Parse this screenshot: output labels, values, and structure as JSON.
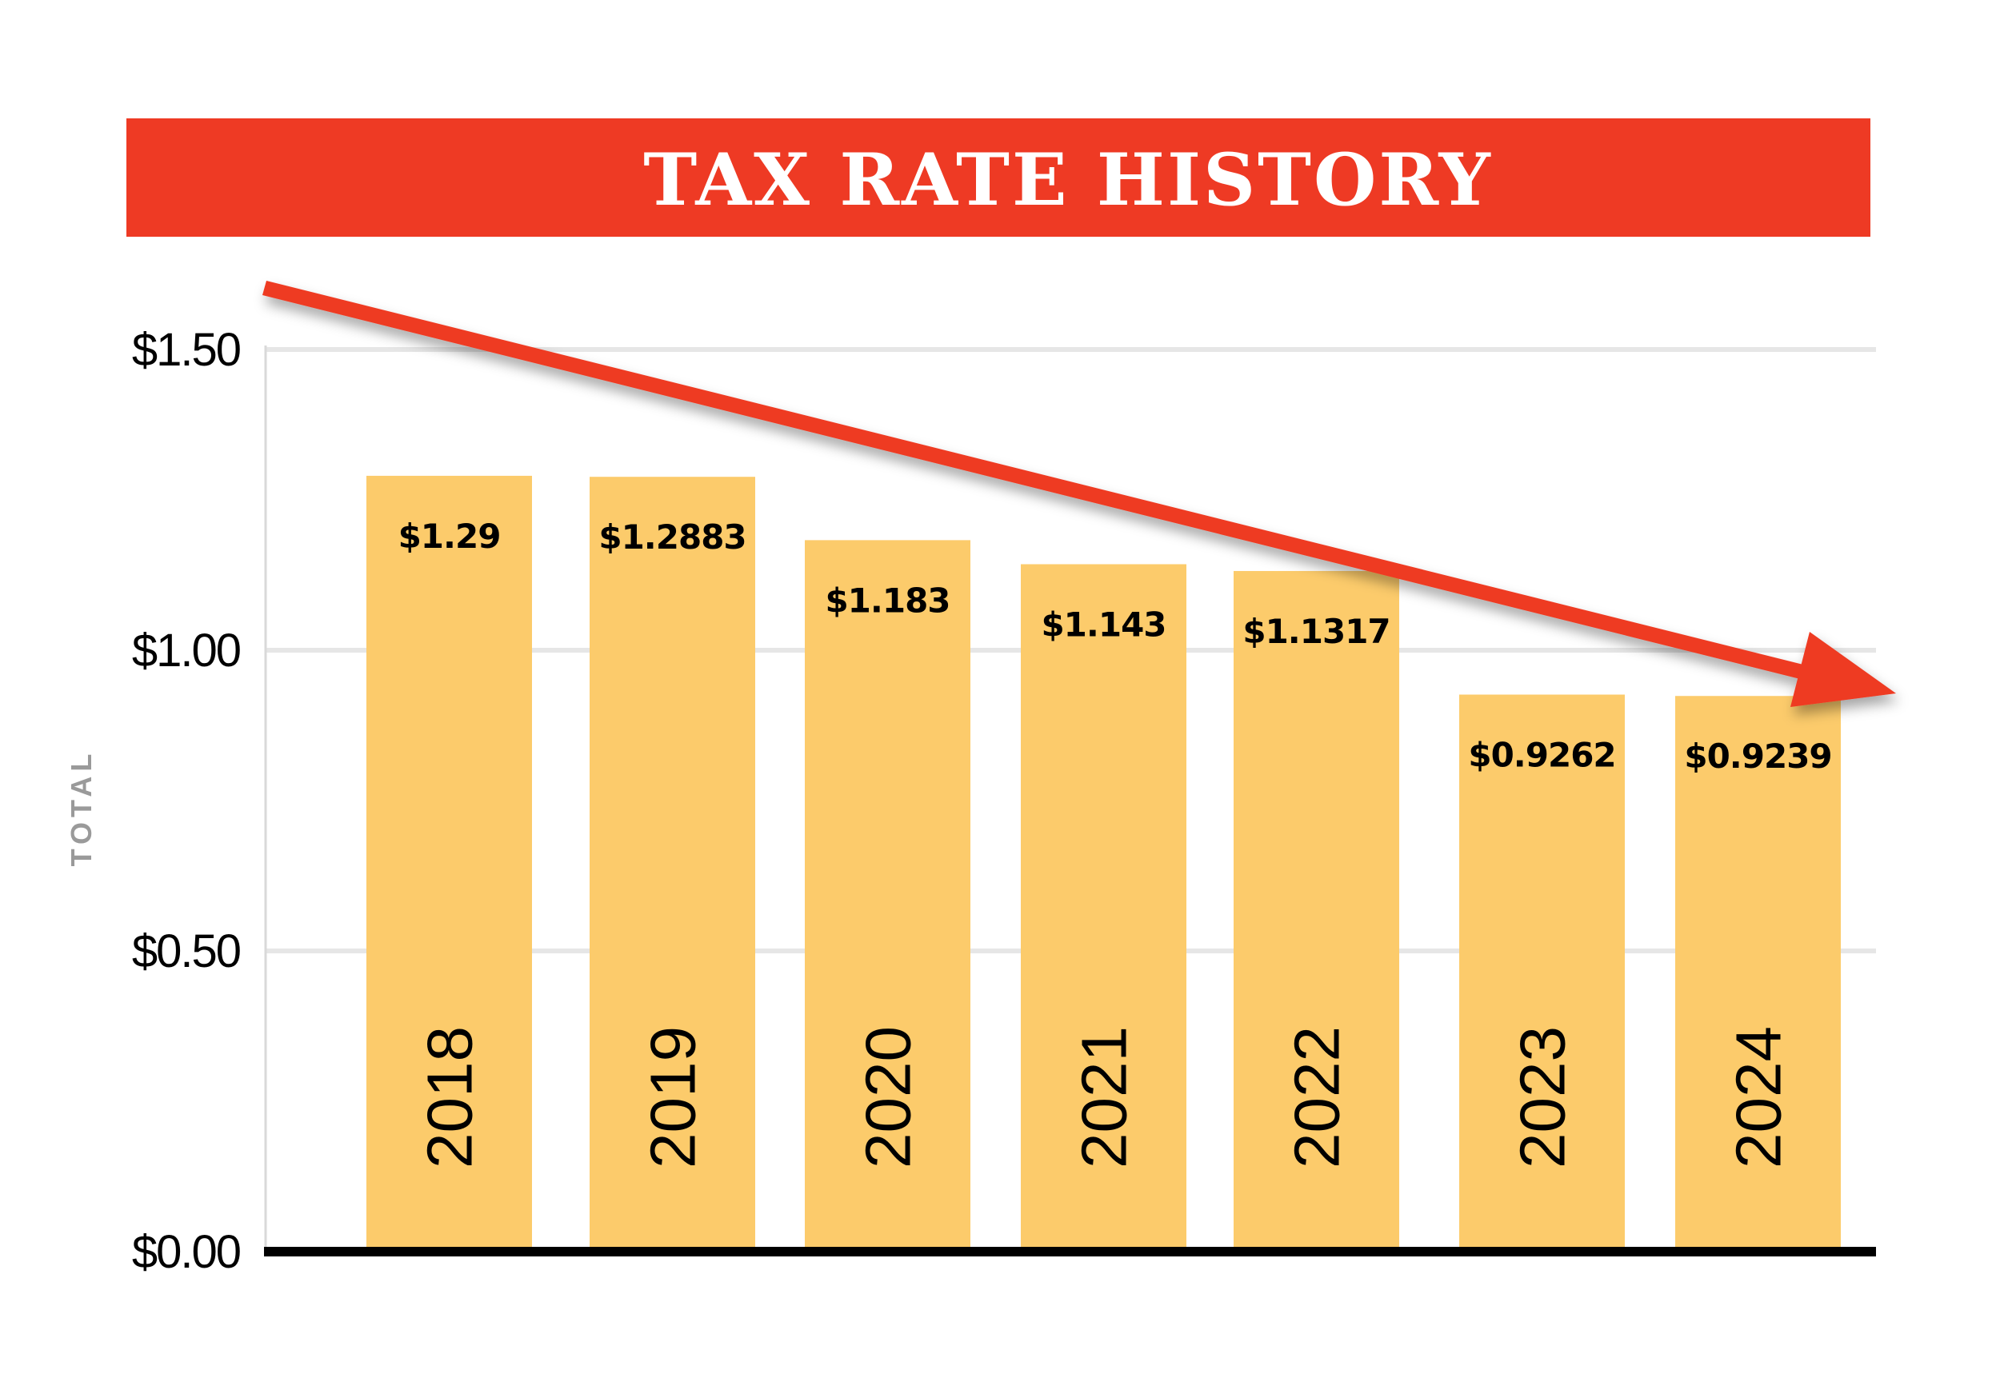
{
  "colors": {
    "banner": "#ee3a24",
    "bar": "#fccb6b",
    "grid": "#e6e6e6",
    "axis": "#000000",
    "arrow": "#ee3a24"
  },
  "chart_data": {
    "type": "bar",
    "title": "TAX RATE HISTORY",
    "ylabel": "TOTAL",
    "xlabel": "",
    "ylim": [
      0,
      1.5
    ],
    "yticks": [
      0,
      0.5,
      1.0,
      1.5
    ],
    "ytick_labels": [
      "$0.00",
      "$0.50",
      "$1.00",
      "$1.50"
    ],
    "grid": true,
    "categories": [
      "2018",
      "2019",
      "2020",
      "2021",
      "2022",
      "2023",
      "2024"
    ],
    "values": [
      1.29,
      1.2883,
      1.183,
      1.143,
      1.1317,
      0.9262,
      0.9239
    ],
    "value_labels": [
      "$1.29",
      "$1.2883",
      "$1.183",
      "$1.143",
      "$1.1317",
      "$0.9262",
      "$0.9239"
    ],
    "annotation": "downward trend arrow"
  }
}
